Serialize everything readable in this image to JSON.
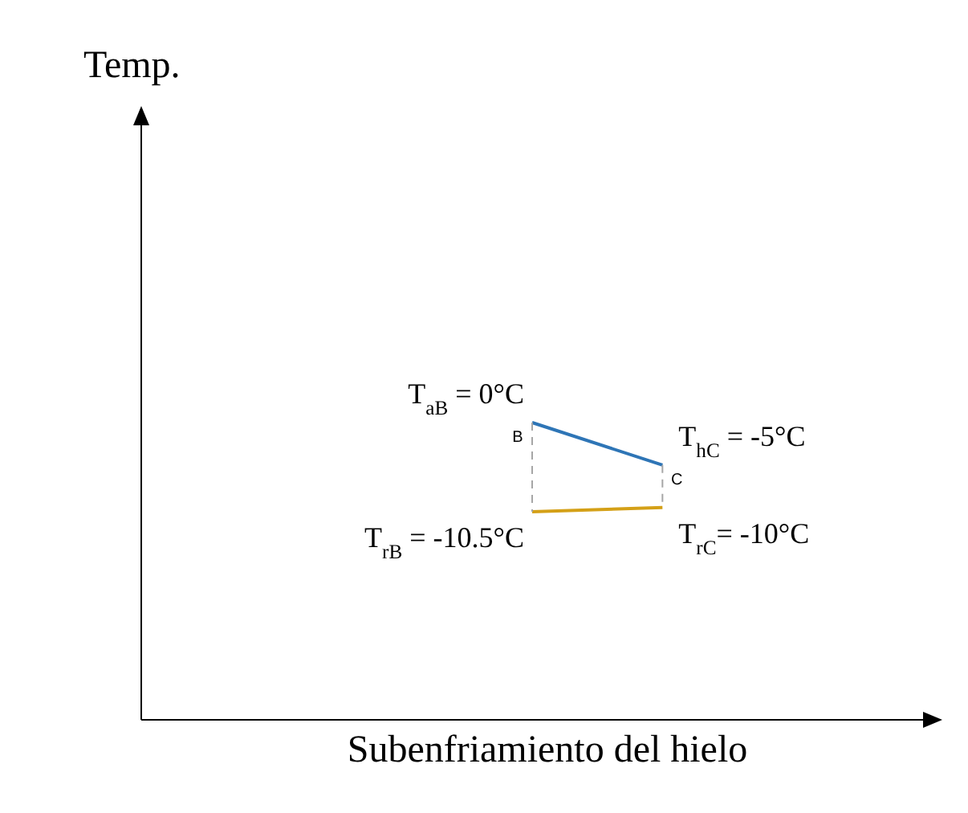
{
  "chart_data": {
    "type": "line",
    "xlabel": "Subenfriamiento del hielo",
    "ylabel": "Temp.",
    "categories": [
      null,
      null,
      null,
      null,
      null,
      null,
      null
    ],
    "ylim": [
      -35,
      35
    ],
    "tick_labels": false,
    "marker": "none",
    "line_style": "solid",
    "series": [
      {
        "color": "#2e75b6",
        "values": [
          null,
          null,
          null,
          0,
          -5,
          null,
          null
        ],
        "value_labels": [
          null,
          null,
          null,
          "T$_{aB}$ = 0°C",
          "T$_{hC}$ = -5°C",
          null,
          null
        ]
      },
      {
        "color": "#d4a017",
        "values": [
          null,
          null,
          null,
          -10.5,
          -10,
          null,
          null
        ],
        "value_labels": [
          null,
          null,
          null,
          "T$_{rB}$ = -10.5°C",
          "T$_{rC}$= -10°C",
          null,
          null
        ]
      }
    ],
    "annotations": [
      "B",
      "C"
    ]
  }
}
